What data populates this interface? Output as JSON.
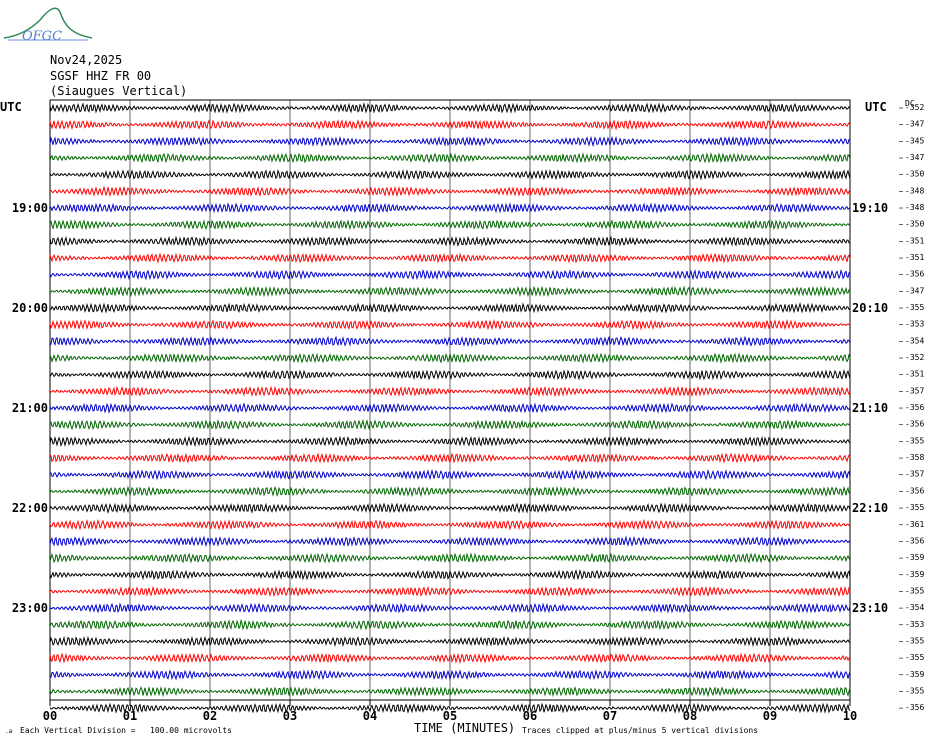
{
  "logo_text": "OFGC",
  "header": {
    "date": "Nov24,2025",
    "channel": "SGSF HHZ FR 00",
    "station_name": "(Siaugues Vertical)"
  },
  "left_axis_label": "UTC",
  "right_axis_label": "UTC",
  "dc_label": "DC",
  "footer": {
    "scale_prefix": "Each Vertical Division =",
    "scale_value": "100.00 microvolts",
    "x_title": "TIME (MINUTES)",
    "clip_note": "Traces clipped at plus/minus 5 vertical divisions"
  },
  "colors": [
    "#000000",
    "#ff0000",
    "#0000cc",
    "#006600"
  ],
  "chart_data": {
    "type": "line",
    "x_ticks": [
      "00",
      "01",
      "02",
      "03",
      "04",
      "05",
      "06",
      "07",
      "08",
      "09",
      "10"
    ],
    "xlim": [
      0,
      10
    ],
    "left_hour_labels": [
      "19:00",
      "20:00",
      "21:00",
      "22:00",
      "23:00"
    ],
    "right_hour_labels": [
      "19:10",
      "20:10",
      "21:10",
      "22:10",
      "23:10"
    ],
    "hour_label_rows": [
      6,
      12,
      18,
      24,
      30
    ],
    "dc_offsets": [
      "-352",
      "-347",
      "-345",
      "-347",
      "-350",
      "-348",
      "-348",
      "-350",
      "-351",
      "-351",
      "-356",
      "-347",
      "-355",
      "-353",
      "-354",
      "-352",
      "-351",
      "-357",
      "-356",
      "-356",
      "-355",
      "-358",
      "-357",
      "-356",
      "-355",
      "-361",
      "-356",
      "-359",
      "-359",
      "-355",
      "-354",
      "-353",
      "-355",
      "-355",
      "-359",
      "-355",
      "-356"
    ]
  }
}
